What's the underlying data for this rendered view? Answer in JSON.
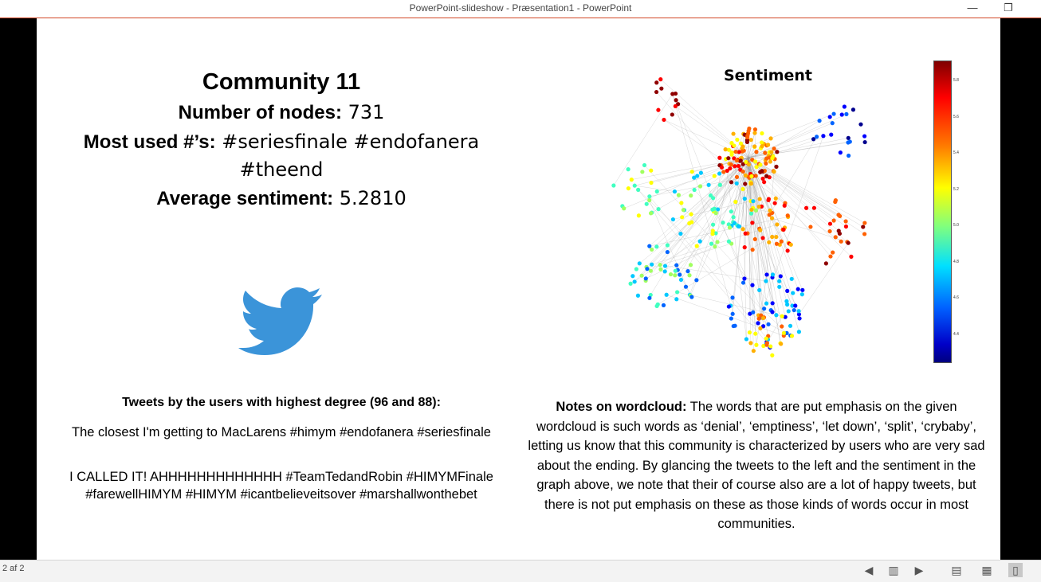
{
  "window": {
    "title": "PowerPoint-slideshow  -  Præsentation1 - PowerPoint",
    "minimize_glyph": "—",
    "restore_glyph": "❐"
  },
  "slide": {
    "heading": "Community 11",
    "nodes_label": "Number of nodes:",
    "nodes_value": " 731",
    "hashtags_label": "Most used #’s:",
    "hashtags_value": " #seriesfinale #endofanera",
    "hashtags_value_2": "#theend",
    "sentiment_label": "Average sentiment:",
    "sentiment_value": "  5.2810",
    "tweets_title": "Tweets by the users with highest degree (96 and 88):",
    "tweet_1": "The closest I'm getting to MacLarens #himym #endofanera #seriesfinale",
    "tweet_2": "I CALLED IT! AHHHHHHHHHHHHH #TeamTedandRobin #HIMYMFinale #farewellHIMYM #HIMYM #icantbelieveitsover #marshallwonthebet",
    "notes_label": "Notes on wordcloud:",
    "notes_text": " The words that are put emphasis on the given wordcloud is such words as ‘denial’, ‘emptiness’, ‘let down’, ‘split’, ‘crybaby’, letting us know that this community is characterized by users who are very sad about the ending. By glancing the tweets to the left and the sentiment in the graph above, we note that their of course also are a lot of happy tweets, but there is not put emphasis on these as those kinds of words occur in most communities.",
    "chart_title": "Sentiment",
    "colorbar_ticks": [
      "5.8",
      "5.6",
      "5.4",
      "5.2",
      "5.0",
      "4.8",
      "4.6",
      "4.4"
    ],
    "logo_icon": "twitter-bird-icon",
    "accent_color": "#d24726",
    "bird_color": "#3b94d9"
  },
  "status": {
    "slide_counter": "2 af 2",
    "icons": [
      "previous-icon",
      "slides-view-icon",
      "next-icon",
      "normal-view-icon",
      "slide-sorter-icon",
      "reading-view-icon"
    ]
  }
}
